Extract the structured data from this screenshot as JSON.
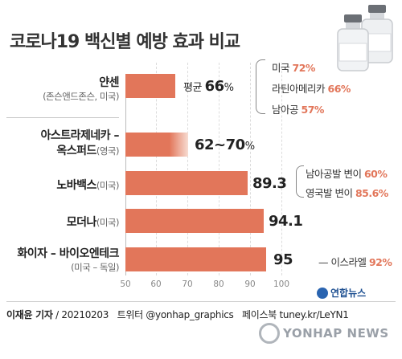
{
  "title": "코로나19 백신별 예방 효과 비교",
  "chart_data": {
    "type": "bar",
    "orientation": "horizontal",
    "title": "코로나19 백신별 예방 효과 비교",
    "xlim": [
      50,
      100
    ],
    "ticks": [
      "50",
      "60",
      "70",
      "80",
      "90",
      "100"
    ],
    "grid": true,
    "categories": [
      {
        "name": "얀센",
        "origin": "(존슨앤드존슨, 미국)"
      },
      {
        "name": "아스트라제네카-옥스퍼드",
        "name_line1": "아스트라제네카 –",
        "name_line2": "옥스퍼드",
        "origin": "(영국)"
      },
      {
        "name": "노바백스",
        "origin": "(미국)"
      },
      {
        "name": "모더나",
        "origin": "(미국)"
      },
      {
        "name": "화이자-바이오엔테크",
        "name_line1": "화이자 – 바이오엔테크",
        "origin": "(미국 – 독일)"
      }
    ],
    "values": [
      66,
      70,
      89.3,
      94.1,
      95
    ],
    "ranges": [
      null,
      [
        62,
        70
      ],
      null,
      null,
      null
    ],
    "value_labels": [
      {
        "prefix": "평균 ",
        "value": "66",
        "suffix": "%"
      },
      {
        "prefix": "",
        "value": "62~70",
        "suffix": "%"
      },
      {
        "prefix": "",
        "value": "89.3",
        "suffix": ""
      },
      {
        "prefix": "",
        "value": "94.1",
        "suffix": ""
      },
      {
        "prefix": "",
        "value": "95",
        "suffix": ""
      }
    ],
    "annotations": [
      {
        "bar": 0,
        "items": [
          {
            "label": "미국",
            "value": "72%"
          },
          {
            "label": "라틴아메리카",
            "value": "66%"
          },
          {
            "label": "남아공",
            "value": "57%"
          }
        ]
      },
      {
        "bar": 2,
        "items": [
          {
            "label": "남아공발 변이",
            "value": "60%"
          },
          {
            "label": "영국발 변이",
            "value": "85.6%"
          }
        ]
      },
      {
        "bar": 4,
        "items": [
          {
            "label": "이스라엘",
            "value": "92%"
          }
        ]
      }
    ]
  },
  "colors": {
    "bar": "#e2765a",
    "accent": "#e2765a",
    "logo": "#1d4f91"
  },
  "icons": {
    "vials": "vaccine-vials-icon"
  },
  "footer": {
    "author": "이재윤 기자",
    "date": "20210203",
    "twitter_label": "트위터",
    "twitter": "@yonhap_graphics",
    "facebook_label": "페이스북",
    "facebook": "tuney.kr/LeYN1",
    "logo": "연합뉴스",
    "watermark": "YONHAP NEWS"
  }
}
